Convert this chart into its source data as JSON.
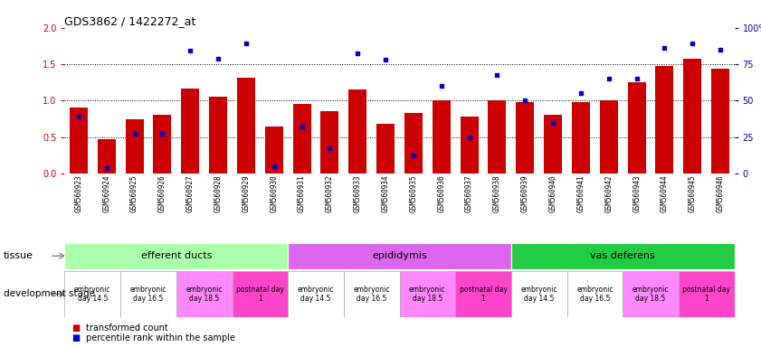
{
  "title": "GDS3862 / 1422272_at",
  "samples": [
    "GSM560923",
    "GSM560924",
    "GSM560925",
    "GSM560926",
    "GSM560927",
    "GSM560928",
    "GSM560929",
    "GSM560930",
    "GSM560931",
    "GSM560932",
    "GSM560933",
    "GSM560934",
    "GSM560935",
    "GSM560936",
    "GSM560937",
    "GSM560938",
    "GSM560939",
    "GSM560940",
    "GSM560941",
    "GSM560942",
    "GSM560943",
    "GSM560944",
    "GSM560945",
    "GSM560946"
  ],
  "bar_heights": [
    0.9,
    0.47,
    0.75,
    0.8,
    1.17,
    1.06,
    1.31,
    0.64,
    0.96,
    0.85,
    1.15,
    0.68,
    0.83,
    1.0,
    0.78,
    1.0,
    0.98,
    0.8,
    0.98,
    1.0,
    1.25,
    1.47,
    1.58,
    1.44
  ],
  "blue_marker_values": [
    0.78,
    0.07,
    0.54,
    0.54,
    1.69,
    1.58,
    1.79,
    0.1,
    0.64,
    0.35,
    1.65,
    1.56,
    0.25,
    1.2,
    0.5,
    1.35,
    1.0,
    0.7,
    1.1,
    1.3,
    1.3,
    1.72,
    1.78,
    1.7
  ],
  "ylim_left": [
    0,
    2
  ],
  "ylim_right": [
    0,
    100
  ],
  "yticks_left": [
    0,
    0.5,
    1.0,
    1.5,
    2.0
  ],
  "yticks_right": [
    0,
    25,
    50,
    75,
    100
  ],
  "bar_color": "#cc0000",
  "marker_color": "#0000cc",
  "xticklabel_bg": "#d0d0d0",
  "tissue_groups": [
    {
      "label": "efferent ducts",
      "start": 0,
      "end": 7,
      "color": "#aaffaa"
    },
    {
      "label": "epididymis",
      "start": 8,
      "end": 15,
      "color": "#dd66ee"
    },
    {
      "label": "vas deferens",
      "start": 16,
      "end": 23,
      "color": "#22cc44"
    }
  ],
  "dev_stage_groups": [
    {
      "label": "embryonic\nday 14.5",
      "start": 0,
      "end": 1,
      "color": "#ffffff"
    },
    {
      "label": "embryonic\nday 16.5",
      "start": 2,
      "end": 3,
      "color": "#ffffff"
    },
    {
      "label": "embryonic\nday 18.5",
      "start": 4,
      "end": 5,
      "color": "#ff88ff"
    },
    {
      "label": "postnatal day\n1",
      "start": 6,
      "end": 7,
      "color": "#ff44cc"
    },
    {
      "label": "embryonic\nday 14.5",
      "start": 8,
      "end": 9,
      "color": "#ffffff"
    },
    {
      "label": "embryonic\nday 16.5",
      "start": 10,
      "end": 11,
      "color": "#ffffff"
    },
    {
      "label": "embryonic\nday 18.5",
      "start": 12,
      "end": 13,
      "color": "#ff88ff"
    },
    {
      "label": "postnatal day\n1",
      "start": 14,
      "end": 15,
      "color": "#ff44cc"
    },
    {
      "label": "embryonic\nday 14.5",
      "start": 16,
      "end": 17,
      "color": "#ffffff"
    },
    {
      "label": "embryonic\nday 16.5",
      "start": 18,
      "end": 19,
      "color": "#ffffff"
    },
    {
      "label": "embryonic\nday 18.5",
      "start": 20,
      "end": 21,
      "color": "#ff88ff"
    },
    {
      "label": "postnatal day\n1",
      "start": 22,
      "end": 23,
      "color": "#ff44cc"
    }
  ],
  "legend_red_label": "transformed count",
  "legend_blue_label": "percentile rank within the sample"
}
